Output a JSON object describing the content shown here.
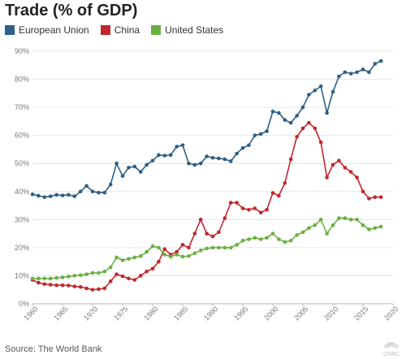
{
  "title": "Trade (% of GDP)",
  "source": "Source: The World Bank",
  "logo_text": "CNBC",
  "chart_data": {
    "type": "line",
    "title": "Trade (% of GDP)",
    "xlabel": "",
    "ylabel": "",
    "xlim": [
      1960,
      2020
    ],
    "ylim": [
      0,
      90
    ],
    "x_ticks": [
      1960,
      1965,
      1970,
      1975,
      1980,
      1985,
      1990,
      1995,
      2000,
      2005,
      2010,
      2015,
      2020
    ],
    "y_ticks": [
      0,
      10,
      20,
      30,
      40,
      50,
      60,
      70,
      80,
      90
    ],
    "y_tick_labels": [
      "0%",
      "10%",
      "20%",
      "30%",
      "40%",
      "50%",
      "60%",
      "70%",
      "80%",
      "90%"
    ],
    "grid": "horizontal",
    "legend_position": "top-left",
    "x": [
      1960,
      1961,
      1962,
      1963,
      1964,
      1965,
      1966,
      1967,
      1968,
      1969,
      1970,
      1971,
      1972,
      1973,
      1974,
      1975,
      1976,
      1977,
      1978,
      1979,
      1980,
      1981,
      1982,
      1983,
      1984,
      1985,
      1986,
      1987,
      1988,
      1989,
      1990,
      1991,
      1992,
      1993,
      1994,
      1995,
      1996,
      1997,
      1998,
      1999,
      2000,
      2001,
      2002,
      2003,
      2004,
      2005,
      2006,
      2007,
      2008,
      2009,
      2010,
      2011,
      2012,
      2013,
      2014,
      2015,
      2016,
      2017,
      2018
    ],
    "series": [
      {
        "name": "European Union",
        "color": "#2e5f86",
        "values": [
          39.0,
          38.5,
          38.0,
          38.3,
          38.8,
          38.6,
          38.8,
          38.3,
          40.0,
          42.0,
          40.0,
          39.6,
          39.6,
          42.5,
          50.0,
          45.5,
          48.5,
          48.9,
          47.0,
          49.5,
          51.0,
          53.0,
          52.8,
          53.0,
          56.0,
          56.5,
          50.0,
          49.5,
          50.0,
          52.5,
          52.0,
          51.8,
          51.5,
          50.8,
          53.5,
          55.5,
          56.5,
          60.0,
          60.5,
          61.5,
          68.5,
          68.0,
          65.5,
          64.5,
          67.0,
          70.0,
          74.5,
          76.0,
          77.5,
          68.0,
          75.5,
          81.0,
          82.5,
          82.0,
          82.5,
          83.5,
          82.5,
          85.5,
          86.5
        ]
      },
      {
        "name": "China",
        "color": "#c1272d",
        "values": [
          8.5,
          7.5,
          7.0,
          6.8,
          6.6,
          6.6,
          6.5,
          6.2,
          6.0,
          5.5,
          5.0,
          5.2,
          5.5,
          8.0,
          10.5,
          9.8,
          9.0,
          8.5,
          10.0,
          11.5,
          12.5,
          15.0,
          19.5,
          17.5,
          18.5,
          21.0,
          20.0,
          25.0,
          30.0,
          25.0,
          24.0,
          25.5,
          30.5,
          36.0,
          36.0,
          34.0,
          33.5,
          34.0,
          32.5,
          33.5,
          39.5,
          38.5,
          43.0,
          51.5,
          59.5,
          62.5,
          64.5,
          62.5,
          57.5,
          45.0,
          49.5,
          51.0,
          48.5,
          47.0,
          45.0,
          40.0,
          37.5,
          38.0,
          38.0
        ]
      },
      {
        "name": "United States",
        "color": "#6ab043",
        "values": [
          9.0,
          9.0,
          9.0,
          9.0,
          9.2,
          9.4,
          9.7,
          10.0,
          10.2,
          10.5,
          11.0,
          11.0,
          11.5,
          13.0,
          16.5,
          15.5,
          16.0,
          16.5,
          17.0,
          18.5,
          20.5,
          20.0,
          17.5,
          16.8,
          17.5,
          16.8,
          17.0,
          18.0,
          19.0,
          19.7,
          20.0,
          20.0,
          20.0,
          20.0,
          21.0,
          22.5,
          23.0,
          23.5,
          23.0,
          23.5,
          25.0,
          23.0,
          22.0,
          22.5,
          24.5,
          25.5,
          27.0,
          28.0,
          30.0,
          25.0,
          28.0,
          30.5,
          30.5,
          30.0,
          30.0,
          28.0,
          26.5,
          27.0,
          27.5
        ]
      }
    ]
  }
}
